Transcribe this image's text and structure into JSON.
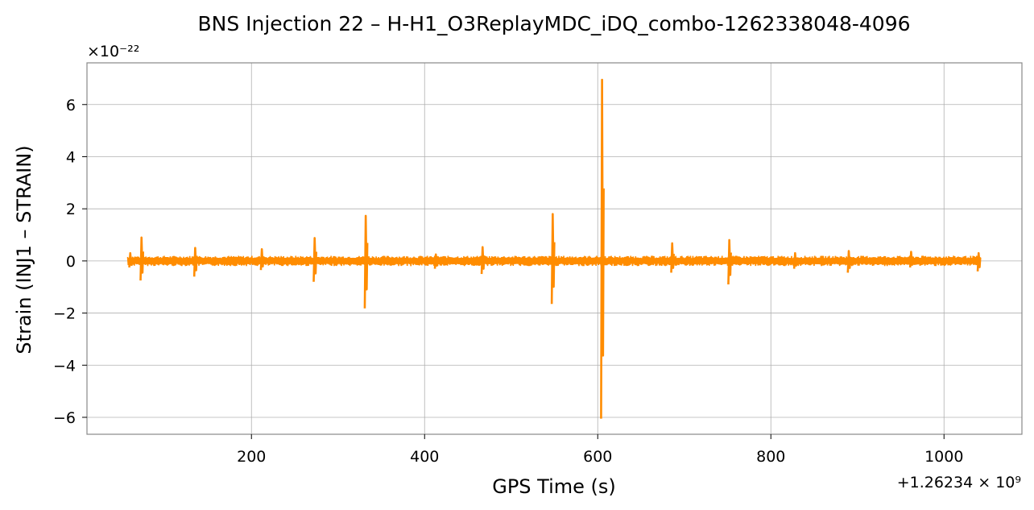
{
  "chart_data": {
    "type": "line",
    "title": "BNS Injection 22 – H-H1_O3ReplayMDC_iDQ_combo-1262338048-4096",
    "xlabel": "GPS Time (s)",
    "ylabel": "Strain (INJ1 – STRAIN)",
    "x_offset_label": "+1.26234 × 10⁹",
    "y_scale_label": "×10⁻²²",
    "xlim": [
      10,
      1090
    ],
    "ylim": [
      -6.65,
      7.6
    ],
    "x_ticks": [
      200,
      400,
      600,
      800,
      1000
    ],
    "y_ticks": [
      -6,
      -4,
      -2,
      0,
      2,
      4,
      6
    ],
    "x_tick_labels": [
      "200",
      "400",
      "600",
      "800",
      "1000"
    ],
    "y_tick_labels": [
      "−6",
      "−4",
      "−2",
      "0",
      "2",
      "4",
      "6"
    ],
    "grid": true,
    "color": "#ff8c00",
    "series": [
      {
        "data_range_x": [
          57,
          1042
        ],
        "noise_amplitude": 0.22,
        "spikes": [
          {
            "x": 60,
            "max": 0.3,
            "min": -0.25
          },
          {
            "x": 73,
            "max": 0.9,
            "min": -0.75
          },
          {
            "x": 135,
            "max": 0.5,
            "min": -0.6
          },
          {
            "x": 212,
            "max": 0.45,
            "min": -0.35
          },
          {
            "x": 273,
            "max": 0.88,
            "min": -0.8
          },
          {
            "x": 332,
            "max": 1.73,
            "min": -1.82
          },
          {
            "x": 413,
            "max": 0.25,
            "min": -0.3
          },
          {
            "x": 467,
            "max": 0.53,
            "min": -0.5
          },
          {
            "x": 548,
            "max": 1.8,
            "min": -1.65
          },
          {
            "x": 605,
            "max": 6.95,
            "min": -6.05
          },
          {
            "x": 686,
            "max": 0.68,
            "min": -0.45
          },
          {
            "x": 752,
            "max": 0.8,
            "min": -0.9
          },
          {
            "x": 828,
            "max": 0.3,
            "min": -0.3
          },
          {
            "x": 890,
            "max": 0.38,
            "min": -0.45
          },
          {
            "x": 962,
            "max": 0.35,
            "min": -0.25
          },
          {
            "x": 1040,
            "max": 0.3,
            "min": -0.4
          }
        ]
      }
    ]
  }
}
